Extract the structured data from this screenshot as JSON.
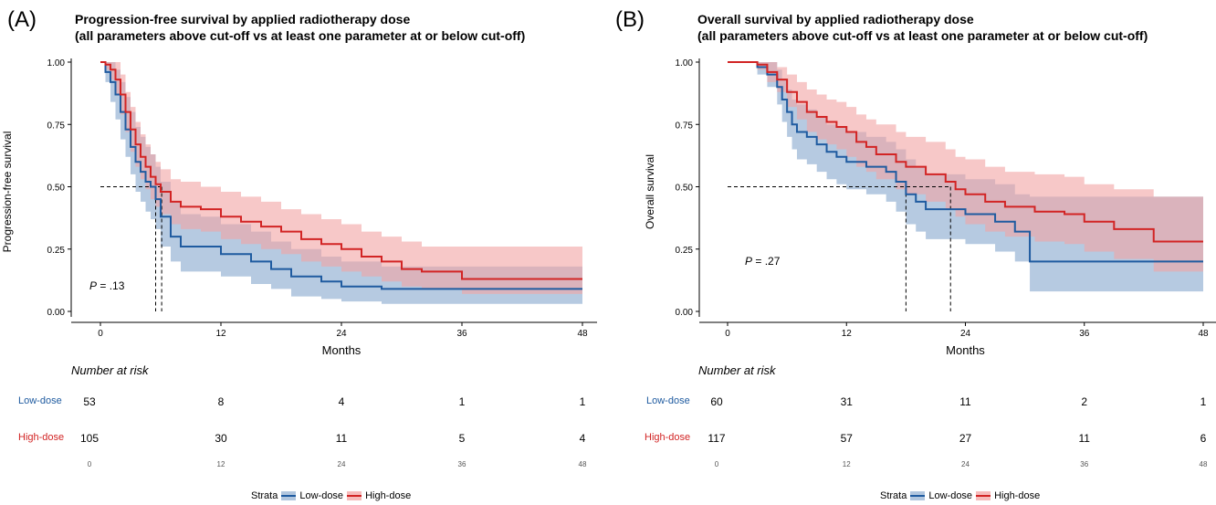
{
  "legend": {
    "title": "Strata",
    "low": "Low-dose",
    "high": "High-dose"
  },
  "colors": {
    "low": "#1f5ba0",
    "low_band": "#a9c1dc",
    "high": "#d22424",
    "high_band": "#f2a3a3"
  },
  "panels": [
    {
      "letter": "(A)",
      "title_line1": "Progression-free survival by applied radiotherapy dose",
      "title_line2": "(all parameters above cut-off vs at least one parameter at or below cut-off)",
      "ylabel": "Progression-free survival",
      "xlabel": "Months",
      "p_italic": "P",
      "p_rest": " = .13",
      "risk_title": "Number at risk",
      "risk": {
        "low": [
          "53",
          "8",
          "4",
          "1",
          "1"
        ],
        "high": [
          "105",
          "30",
          "11",
          "5",
          "4"
        ]
      }
    },
    {
      "letter": "(B)",
      "title_line1": "Overall survival by applied radiotherapy dose",
      "title_line2": "(all parameters above cut-off vs at least one parameter at or below cut-off)",
      "ylabel": "Overall survival",
      "xlabel": "Months",
      "p_italic": "P",
      "p_rest": " = .27",
      "risk_title": "Number at risk",
      "risk": {
        "low": [
          "60",
          "31",
          "11",
          "2",
          "1"
        ],
        "high": [
          "117",
          "57",
          "27",
          "11",
          "6"
        ]
      }
    }
  ],
  "chart_data": [
    {
      "type": "line",
      "title": "Progression-free survival by applied radiotherapy dose (all parameters above cut-off vs at least one parameter at or below cut-off)",
      "xlabel": "Months",
      "ylabel": "Progression-free survival",
      "xlim": [
        0,
        48
      ],
      "ylim": [
        0,
        1
      ],
      "xticks": [
        "0",
        "12",
        "24",
        "36",
        "48"
      ],
      "yticks": [
        "0.00",
        "0.25",
        "0.50",
        "0.75",
        "1.00"
      ],
      "median_line": 0.5,
      "medians": {
        "Low-dose": 5.5,
        "High-dose": 6.1
      },
      "series": [
        {
          "name": "Low-dose",
          "x": [
            0,
            0.5,
            1,
            1.5,
            2,
            2.5,
            3,
            3.5,
            4,
            4.5,
            5,
            5.5,
            6,
            7,
            8,
            10,
            12,
            15,
            17,
            19,
            22,
            24,
            28,
            48
          ],
          "y": [
            1.0,
            0.96,
            0.92,
            0.87,
            0.8,
            0.73,
            0.66,
            0.6,
            0.56,
            0.52,
            0.5,
            0.45,
            0.38,
            0.3,
            0.26,
            0.26,
            0.23,
            0.2,
            0.17,
            0.14,
            0.12,
            0.1,
            0.09,
            0.09
          ],
          "upper": [
            1.0,
            1.0,
            1.0,
            0.97,
            0.92,
            0.86,
            0.8,
            0.74,
            0.7,
            0.66,
            0.63,
            0.58,
            0.52,
            0.44,
            0.39,
            0.38,
            0.35,
            0.32,
            0.28,
            0.25,
            0.22,
            0.2,
            0.18,
            0.18
          ],
          "lower": [
            1.0,
            0.92,
            0.84,
            0.77,
            0.69,
            0.62,
            0.55,
            0.48,
            0.44,
            0.4,
            0.37,
            0.33,
            0.26,
            0.2,
            0.16,
            0.16,
            0.14,
            0.11,
            0.09,
            0.06,
            0.05,
            0.04,
            0.03,
            0.03
          ]
        },
        {
          "name": "High-dose",
          "x": [
            0,
            0.5,
            1,
            1.5,
            2,
            2.5,
            3,
            3.5,
            4,
            4.5,
            5,
            5.5,
            6,
            7,
            8,
            10,
            12,
            14,
            16,
            18,
            20,
            22,
            24,
            26,
            28,
            30,
            32,
            36,
            48
          ],
          "y": [
            1.0,
            0.99,
            0.97,
            0.93,
            0.87,
            0.8,
            0.73,
            0.67,
            0.62,
            0.58,
            0.54,
            0.51,
            0.48,
            0.44,
            0.42,
            0.41,
            0.38,
            0.36,
            0.34,
            0.32,
            0.29,
            0.27,
            0.25,
            0.22,
            0.2,
            0.17,
            0.16,
            0.13,
            0.13
          ],
          "upper": [
            1.0,
            1.0,
            1.0,
            1.0,
            0.95,
            0.88,
            0.82,
            0.76,
            0.71,
            0.67,
            0.63,
            0.6,
            0.57,
            0.53,
            0.52,
            0.5,
            0.48,
            0.46,
            0.44,
            0.41,
            0.39,
            0.37,
            0.35,
            0.32,
            0.3,
            0.28,
            0.26,
            0.26,
            0.26
          ],
          "lower": [
            1.0,
            0.97,
            0.93,
            0.87,
            0.79,
            0.72,
            0.64,
            0.58,
            0.53,
            0.49,
            0.45,
            0.42,
            0.39,
            0.35,
            0.33,
            0.32,
            0.29,
            0.27,
            0.25,
            0.23,
            0.2,
            0.18,
            0.16,
            0.14,
            0.12,
            0.1,
            0.09,
            0.07,
            0.06
          ]
        }
      ],
      "legend": [
        "Low-dose",
        "High-dose"
      ]
    },
    {
      "type": "line",
      "title": "Overall survival by applied radiotherapy dose (all parameters above cut-off vs at least one parameter at or below cut-off)",
      "xlabel": "Months",
      "ylabel": "Overall survival",
      "xlim": [
        0,
        48
      ],
      "ylim": [
        0,
        1
      ],
      "xticks": [
        "0",
        "12",
        "24",
        "36",
        "48"
      ],
      "yticks": [
        "0.00",
        "0.25",
        "0.50",
        "0.75",
        "1.00"
      ],
      "median_line": 0.5,
      "medians": {
        "Low-dose": 18.0,
        "High-dose": 22.5
      },
      "series": [
        {
          "name": "Low-dose",
          "x": [
            0,
            2,
            3,
            4,
            5,
            5.5,
            6,
            6.5,
            7,
            8,
            9,
            10,
            11,
            12,
            13,
            14,
            16,
            17,
            18,
            19,
            20,
            22,
            24,
            27,
            29,
            30.5,
            48
          ],
          "y": [
            1.0,
            1.0,
            0.98,
            0.95,
            0.9,
            0.85,
            0.8,
            0.75,
            0.72,
            0.7,
            0.67,
            0.64,
            0.62,
            0.6,
            0.6,
            0.58,
            0.56,
            0.52,
            0.47,
            0.44,
            0.41,
            0.41,
            0.39,
            0.36,
            0.32,
            0.2,
            0.2
          ],
          "upper": [
            1.0,
            1.0,
            1.0,
            1.0,
            0.97,
            0.93,
            0.89,
            0.85,
            0.83,
            0.81,
            0.78,
            0.75,
            0.74,
            0.72,
            0.72,
            0.7,
            0.68,
            0.65,
            0.61,
            0.58,
            0.55,
            0.55,
            0.53,
            0.51,
            0.47,
            0.46,
            0.46
          ],
          "lower": [
            1.0,
            1.0,
            0.95,
            0.9,
            0.83,
            0.76,
            0.7,
            0.65,
            0.61,
            0.59,
            0.56,
            0.53,
            0.51,
            0.49,
            0.49,
            0.47,
            0.44,
            0.4,
            0.35,
            0.32,
            0.29,
            0.29,
            0.27,
            0.24,
            0.2,
            0.08,
            0.08
          ]
        },
        {
          "name": "High-dose",
          "x": [
            0,
            2,
            3,
            4,
            5,
            6,
            7,
            8,
            9,
            10,
            11,
            12,
            13,
            14,
            15,
            17,
            18,
            20,
            22,
            23,
            24,
            26,
            28,
            31,
            34,
            36,
            39,
            43,
            48
          ],
          "y": [
            1.0,
            1.0,
            0.99,
            0.96,
            0.93,
            0.88,
            0.84,
            0.8,
            0.78,
            0.76,
            0.74,
            0.72,
            0.68,
            0.66,
            0.63,
            0.6,
            0.58,
            0.55,
            0.52,
            0.49,
            0.47,
            0.44,
            0.42,
            0.4,
            0.39,
            0.36,
            0.33,
            0.28,
            0.28
          ],
          "upper": [
            1.0,
            1.0,
            1.0,
            1.0,
            0.98,
            0.95,
            0.92,
            0.89,
            0.87,
            0.85,
            0.84,
            0.82,
            0.79,
            0.77,
            0.75,
            0.72,
            0.7,
            0.68,
            0.65,
            0.62,
            0.61,
            0.58,
            0.56,
            0.55,
            0.54,
            0.51,
            0.49,
            0.46,
            0.46
          ],
          "lower": [
            1.0,
            1.0,
            0.97,
            0.92,
            0.88,
            0.82,
            0.77,
            0.72,
            0.69,
            0.67,
            0.65,
            0.62,
            0.58,
            0.56,
            0.53,
            0.49,
            0.47,
            0.44,
            0.41,
            0.38,
            0.35,
            0.32,
            0.3,
            0.28,
            0.27,
            0.24,
            0.21,
            0.16,
            0.16
          ]
        }
      ],
      "legend": [
        "Low-dose",
        "High-dose"
      ]
    }
  ]
}
